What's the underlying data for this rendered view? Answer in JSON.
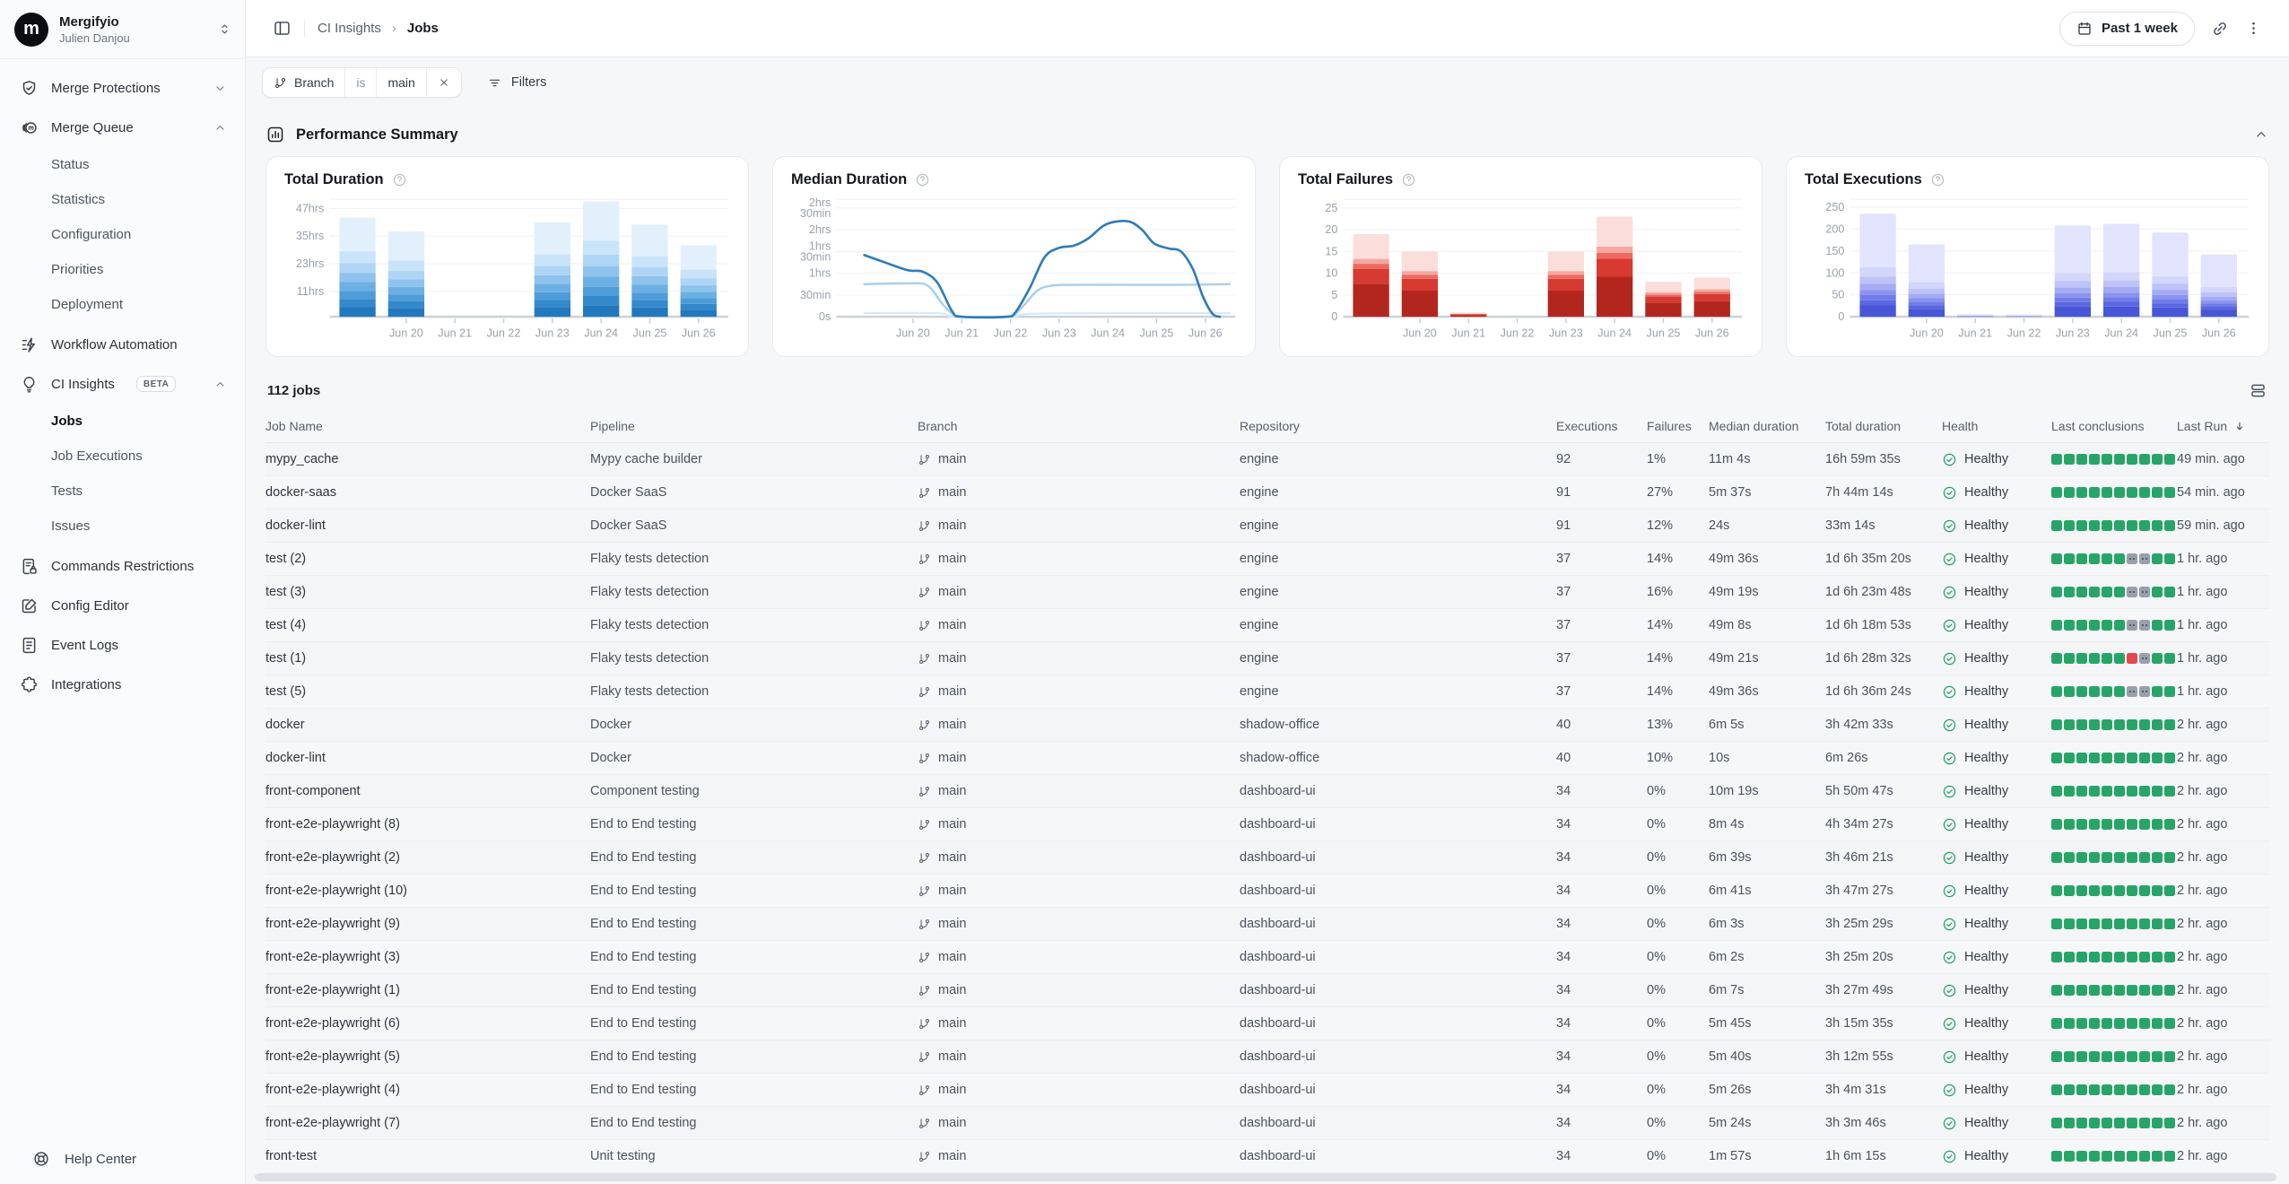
{
  "colors": {
    "success_green": "#27a567",
    "neutral_gray": "#97a0ab",
    "fail_red": "#e5484d",
    "duration_blue": "#2e7cb8",
    "executions_indigo": "#5a67e0"
  },
  "sidebar": {
    "org_name": "Mergifyio",
    "org_user": "Julien Danjou",
    "org_avatar_glyph": "m",
    "items": [
      {
        "label": "Merge Protections",
        "icon": "shield-check-icon",
        "chevron": "down"
      },
      {
        "label": "Merge Queue",
        "icon": "merge-queue-icon",
        "chevron": "up",
        "children": [
          {
            "label": "Status"
          },
          {
            "label": "Statistics"
          },
          {
            "label": "Configuration"
          },
          {
            "label": "Priorities"
          },
          {
            "label": "Deployment"
          }
        ]
      },
      {
        "label": "Workflow Automation",
        "icon": "workflow-icon"
      },
      {
        "label": "CI Insights",
        "icon": "lightbulb-icon",
        "badge": "BETA",
        "chevron": "up",
        "children": [
          {
            "label": "Jobs",
            "active": true
          },
          {
            "label": "Job Executions"
          },
          {
            "label": "Tests"
          },
          {
            "label": "Issues"
          }
        ]
      },
      {
        "label": "Commands Restrictions",
        "icon": "file-lock-icon"
      },
      {
        "label": "Config Editor",
        "icon": "edit-icon"
      },
      {
        "label": "Event Logs",
        "icon": "file-text-icon"
      },
      {
        "label": "Integrations",
        "icon": "puzzle-icon"
      }
    ],
    "help_label": "Help Center"
  },
  "topbar": {
    "breadcrumb": [
      "CI Insights",
      "Jobs"
    ],
    "range_label": "Past 1 week"
  },
  "filterbar": {
    "chip": {
      "field": "Branch",
      "operator": "is",
      "value": "main"
    },
    "filters_label": "Filters"
  },
  "summary": {
    "title": "Performance Summary"
  },
  "jobs_table": {
    "count_label": "112 jobs",
    "columns": [
      "Job Name",
      "Pipeline",
      "Branch",
      "Repository",
      "Executions",
      "Failures",
      "Median duration",
      "Total duration",
      "Health",
      "Last conclusions",
      "Last Run"
    ],
    "sorted_by": "Last Run",
    "rows": [
      {
        "name": "mypy_cache",
        "pipeline": "Mypy cache builder",
        "branch": "main",
        "repository": "engine",
        "executions": "92",
        "failures": "1%",
        "median": "11m 4s",
        "total": "16h 59m 35s",
        "health": "Healthy",
        "conclusions": "GGGGGGGGGG",
        "last_run": "49 min. ago"
      },
      {
        "name": "docker-saas",
        "pipeline": "Docker SaaS",
        "branch": "main",
        "repository": "engine",
        "executions": "91",
        "failures": "27%",
        "median": "5m 37s",
        "total": "7h 44m 14s",
        "health": "Healthy",
        "conclusions": "GGGGGGGGGG",
        "last_run": "54 min. ago"
      },
      {
        "name": "docker-lint",
        "pipeline": "Docker SaaS",
        "branch": "main",
        "repository": "engine",
        "executions": "91",
        "failures": "12%",
        "median": "24s",
        "total": "33m 14s",
        "health": "Healthy",
        "conclusions": "GGGGGGGGGG",
        "last_run": "59 min. ago"
      },
      {
        "name": "test (2)",
        "pipeline": "Flaky tests detection",
        "branch": "main",
        "repository": "engine",
        "executions": "37",
        "failures": "14%",
        "median": "49m 36s",
        "total": "1d 6h 35m 20s",
        "health": "Healthy",
        "conclusions": "GGGGGGNNGG",
        "last_run": "1 hr. ago"
      },
      {
        "name": "test (3)",
        "pipeline": "Flaky tests detection",
        "branch": "main",
        "repository": "engine",
        "executions": "37",
        "failures": "16%",
        "median": "49m 19s",
        "total": "1d 6h 23m 48s",
        "health": "Healthy",
        "conclusions": "GGGGGGNNGG",
        "last_run": "1 hr. ago"
      },
      {
        "name": "test (4)",
        "pipeline": "Flaky tests detection",
        "branch": "main",
        "repository": "engine",
        "executions": "37",
        "failures": "14%",
        "median": "49m 8s",
        "total": "1d 6h 18m 53s",
        "health": "Healthy",
        "conclusions": "GGGGGGNNGG",
        "last_run": "1 hr. ago"
      },
      {
        "name": "test (1)",
        "pipeline": "Flaky tests detection",
        "branch": "main",
        "repository": "engine",
        "executions": "37",
        "failures": "14%",
        "median": "49m 21s",
        "total": "1d 6h 28m 32s",
        "health": "Healthy",
        "conclusions": "GGGGGGRNGG",
        "last_run": "1 hr. ago"
      },
      {
        "name": "test (5)",
        "pipeline": "Flaky tests detection",
        "branch": "main",
        "repository": "engine",
        "executions": "37",
        "failures": "14%",
        "median": "49m 36s",
        "total": "1d 6h 36m 24s",
        "health": "Healthy",
        "conclusions": "GGGGGGNNGG",
        "last_run": "1 hr. ago"
      },
      {
        "name": "docker",
        "pipeline": "Docker",
        "branch": "main",
        "repository": "shadow-office",
        "executions": "40",
        "failures": "13%",
        "median": "6m 5s",
        "total": "3h 42m 33s",
        "health": "Healthy",
        "conclusions": "GGGGGGGGGG",
        "last_run": "2 hr. ago"
      },
      {
        "name": "docker-lint",
        "pipeline": "Docker",
        "branch": "main",
        "repository": "shadow-office",
        "executions": "40",
        "failures": "10%",
        "median": "10s",
        "total": "6m 26s",
        "health": "Healthy",
        "conclusions": "GGGGGGGGGG",
        "last_run": "2 hr. ago"
      },
      {
        "name": "front-component",
        "pipeline": "Component testing",
        "branch": "main",
        "repository": "dashboard-ui",
        "executions": "34",
        "failures": "0%",
        "median": "10m 19s",
        "total": "5h 50m 47s",
        "health": "Healthy",
        "conclusions": "GGGGGGGGGG",
        "last_run": "2 hr. ago"
      },
      {
        "name": "front-e2e-playwright (8)",
        "pipeline": "End to End testing",
        "branch": "main",
        "repository": "dashboard-ui",
        "executions": "34",
        "failures": "0%",
        "median": "8m 4s",
        "total": "4h 34m 27s",
        "health": "Healthy",
        "conclusions": "GGGGGGGGGG",
        "last_run": "2 hr. ago"
      },
      {
        "name": "front-e2e-playwright (2)",
        "pipeline": "End to End testing",
        "branch": "main",
        "repository": "dashboard-ui",
        "executions": "34",
        "failures": "0%",
        "median": "6m 39s",
        "total": "3h 46m 21s",
        "health": "Healthy",
        "conclusions": "GGGGGGGGGG",
        "last_run": "2 hr. ago"
      },
      {
        "name": "front-e2e-playwright (10)",
        "pipeline": "End to End testing",
        "branch": "main",
        "repository": "dashboard-ui",
        "executions": "34",
        "failures": "0%",
        "median": "6m 41s",
        "total": "3h 47m 27s",
        "health": "Healthy",
        "conclusions": "GGGGGGGGGG",
        "last_run": "2 hr. ago"
      },
      {
        "name": "front-e2e-playwright (9)",
        "pipeline": "End to End testing",
        "branch": "main",
        "repository": "dashboard-ui",
        "executions": "34",
        "failures": "0%",
        "median": "6m 3s",
        "total": "3h 25m 29s",
        "health": "Healthy",
        "conclusions": "GGGGGGGGGG",
        "last_run": "2 hr. ago"
      },
      {
        "name": "front-e2e-playwright (3)",
        "pipeline": "End to End testing",
        "branch": "main",
        "repository": "dashboard-ui",
        "executions": "34",
        "failures": "0%",
        "median": "6m 2s",
        "total": "3h 25m 20s",
        "health": "Healthy",
        "conclusions": "GGGGGGGGGG",
        "last_run": "2 hr. ago"
      },
      {
        "name": "front-e2e-playwright (1)",
        "pipeline": "End to End testing",
        "branch": "main",
        "repository": "dashboard-ui",
        "executions": "34",
        "failures": "0%",
        "median": "6m 7s",
        "total": "3h 27m 49s",
        "health": "Healthy",
        "conclusions": "GGGGGGGGGG",
        "last_run": "2 hr. ago"
      },
      {
        "name": "front-e2e-playwright (6)",
        "pipeline": "End to End testing",
        "branch": "main",
        "repository": "dashboard-ui",
        "executions": "34",
        "failures": "0%",
        "median": "5m 45s",
        "total": "3h 15m 35s",
        "health": "Healthy",
        "conclusions": "GGGGGGGGGG",
        "last_run": "2 hr. ago"
      },
      {
        "name": "front-e2e-playwright (5)",
        "pipeline": "End to End testing",
        "branch": "main",
        "repository": "dashboard-ui",
        "executions": "34",
        "failures": "0%",
        "median": "5m 40s",
        "total": "3h 12m 55s",
        "health": "Healthy",
        "conclusions": "GGGGGGGGGG",
        "last_run": "2 hr. ago"
      },
      {
        "name": "front-e2e-playwright (4)",
        "pipeline": "End to End testing",
        "branch": "main",
        "repository": "dashboard-ui",
        "executions": "34",
        "failures": "0%",
        "median": "5m 26s",
        "total": "3h 4m 31s",
        "health": "Healthy",
        "conclusions": "GGGGGGGGGG",
        "last_run": "2 hr. ago"
      },
      {
        "name": "front-e2e-playwright (7)",
        "pipeline": "End to End testing",
        "branch": "main",
        "repository": "dashboard-ui",
        "executions": "34",
        "failures": "0%",
        "median": "5m 24s",
        "total": "3h 3m 46s",
        "health": "Healthy",
        "conclusions": "GGGGGGGGGG",
        "last_run": "2 hr. ago"
      },
      {
        "name": "front-test",
        "pipeline": "Unit testing",
        "branch": "main",
        "repository": "dashboard-ui",
        "executions": "34",
        "failures": "0%",
        "median": "1m 57s",
        "total": "1h 6m 15s",
        "health": "Healthy",
        "conclusions": "GGGGGGGGGG",
        "last_run": "2 hr. ago"
      }
    ]
  },
  "chart_data": [
    {
      "type": "bar",
      "stacked": true,
      "title": "Total Duration",
      "categories": [
        "",
        "Jun 20",
        "Jun 21",
        "Jun 22",
        "Jun 23",
        "Jun 24",
        "Jun 25",
        "Jun 26"
      ],
      "values": [
        43,
        37,
        0,
        0,
        41,
        50,
        40,
        31
      ],
      "unit": "hrs",
      "ylim": [
        0,
        51
      ],
      "grid": true,
      "legend": false,
      "y_ticks": [
        {
          "v": 11,
          "label": "11hrs"
        },
        {
          "v": 23,
          "label": "23hrs"
        },
        {
          "v": 35,
          "label": "35hrs"
        },
        {
          "v": 47,
          "label": "47hrs"
        }
      ],
      "stack_fractions": [
        0.1,
        0.08,
        0.08,
        0.09,
        0.09,
        0.1,
        0.12,
        0.34
      ],
      "stack_colors": [
        "#2178bd",
        "#3489cb",
        "#4e9cd8",
        "#6cb0e3",
        "#8dc3ec",
        "#aed5f4",
        "#c9e4f9",
        "#e2f0fc"
      ]
    },
    {
      "type": "line",
      "title": "Median Duration",
      "categories": [
        "",
        "Jun 20",
        "Jun 21",
        "Jun 22",
        "Jun 23",
        "Jun 24",
        "Jun 25",
        "Jun 26"
      ],
      "unit": "minutes",
      "ylim": [
        0,
        162
      ],
      "grid": true,
      "legend": false,
      "y_ticks": [
        {
          "v": 0,
          "label": "0s"
        },
        {
          "v": 30,
          "label": "30min"
        },
        {
          "v": 60,
          "label": "1hrs"
        },
        {
          "v": 90,
          "label": [
            "1hrs",
            "30min"
          ]
        },
        {
          "v": 120,
          "label": "2hrs"
        },
        {
          "v": 150,
          "label": [
            "2hrs",
            "30min"
          ]
        }
      ],
      "series": [
        {
          "name": "line-dark",
          "color": "#2e7cb8",
          "width": 2.6,
          "points": [
            [
              0,
              85
            ],
            [
              0.5,
              73
            ],
            [
              0.9,
              64
            ],
            [
              1.2,
              62
            ],
            [
              1.5,
              47
            ],
            [
              1.8,
              8
            ],
            [
              2.0,
              0
            ],
            [
              2.9,
              0
            ],
            [
              3.1,
              6
            ],
            [
              3.4,
              40
            ],
            [
              3.7,
              82
            ],
            [
              4.0,
              95
            ],
            [
              4.3,
              98
            ],
            [
              4.6,
              108
            ],
            [
              4.9,
              125
            ],
            [
              5.15,
              131
            ],
            [
              5.45,
              131
            ],
            [
              5.7,
              120
            ],
            [
              5.95,
              101
            ],
            [
              6.25,
              94
            ],
            [
              6.5,
              90
            ],
            [
              6.75,
              65
            ],
            [
              6.95,
              28
            ],
            [
              7.15,
              4
            ],
            [
              7.3,
              0
            ]
          ]
        },
        {
          "name": "line-medium",
          "color": "#a8cfec",
          "width": 2.4,
          "points": [
            [
              0,
              45
            ],
            [
              0.9,
              46
            ],
            [
              1.3,
              43
            ],
            [
              1.6,
              18
            ],
            [
              1.85,
              2
            ],
            [
              2.05,
              0
            ],
            [
              2.95,
              0
            ],
            [
              3.25,
              14
            ],
            [
              3.55,
              36
            ],
            [
              3.85,
              43
            ],
            [
              4.3,
              44
            ],
            [
              5.5,
              44
            ],
            [
              6.5,
              44
            ],
            [
              7.5,
              45
            ]
          ]
        },
        {
          "name": "line-light",
          "color": "#d7e9f8",
          "width": 2.2,
          "points": [
            [
              0,
              5
            ],
            [
              1.5,
              5
            ],
            [
              1.85,
              0
            ],
            [
              3.0,
              0
            ],
            [
              3.4,
              4
            ],
            [
              5.0,
              5
            ],
            [
              7.5,
              5
            ]
          ]
        }
      ]
    },
    {
      "type": "bar",
      "stacked": true,
      "title": "Total Failures",
      "categories": [
        "",
        "Jun 20",
        "Jun 21",
        "Jun 22",
        "Jun 23",
        "Jun 24",
        "Jun 25",
        "Jun 26"
      ],
      "values": [
        19,
        15,
        1,
        0,
        15,
        23,
        8,
        9
      ],
      "unit": "failures",
      "ylim": [
        0,
        27
      ],
      "grid": true,
      "legend": false,
      "y_ticks": [
        {
          "v": 0,
          "label": "0"
        },
        {
          "v": 5,
          "label": "5"
        },
        {
          "v": 10,
          "label": "10"
        },
        {
          "v": 15,
          "label": "15"
        },
        {
          "v": 20,
          "label": "20"
        },
        {
          "v": 25,
          "label": "25"
        }
      ],
      "stack_fractions": [
        0.4,
        0.18,
        0.06,
        0.06,
        0.3
      ],
      "stack_colors": [
        "#b3261e",
        "#d73a31",
        "#ec6a60",
        "#f5a7a1",
        "#fbdedb"
      ]
    },
    {
      "type": "bar",
      "stacked": true,
      "title": "Total Executions",
      "categories": [
        "",
        "Jun 20",
        "Jun 21",
        "Jun 22",
        "Jun 23",
        "Jun 24",
        "Jun 25",
        "Jun 26"
      ],
      "values": [
        235,
        165,
        6,
        5,
        208,
        212,
        192,
        142
      ],
      "unit": "executions",
      "ylim": [
        0,
        268
      ],
      "grid": true,
      "legend": false,
      "y_ticks": [
        {
          "v": 0,
          "label": "0"
        },
        {
          "v": 50,
          "label": "50"
        },
        {
          "v": 100,
          "label": "100"
        },
        {
          "v": 150,
          "label": "150"
        },
        {
          "v": 200,
          "label": "200"
        },
        {
          "v": 250,
          "label": "250"
        }
      ],
      "stack_fractions": [
        0.11,
        0.05,
        0.05,
        0.05,
        0.06,
        0.07,
        0.09,
        0.52
      ],
      "stack_colors": [
        "#4756d6",
        "#5a67e0",
        "#707ce8",
        "#8a93ee",
        "#a4abf3",
        "#bdc2f7",
        "#d2d6fa",
        "#e1e4fc"
      ]
    }
  ]
}
